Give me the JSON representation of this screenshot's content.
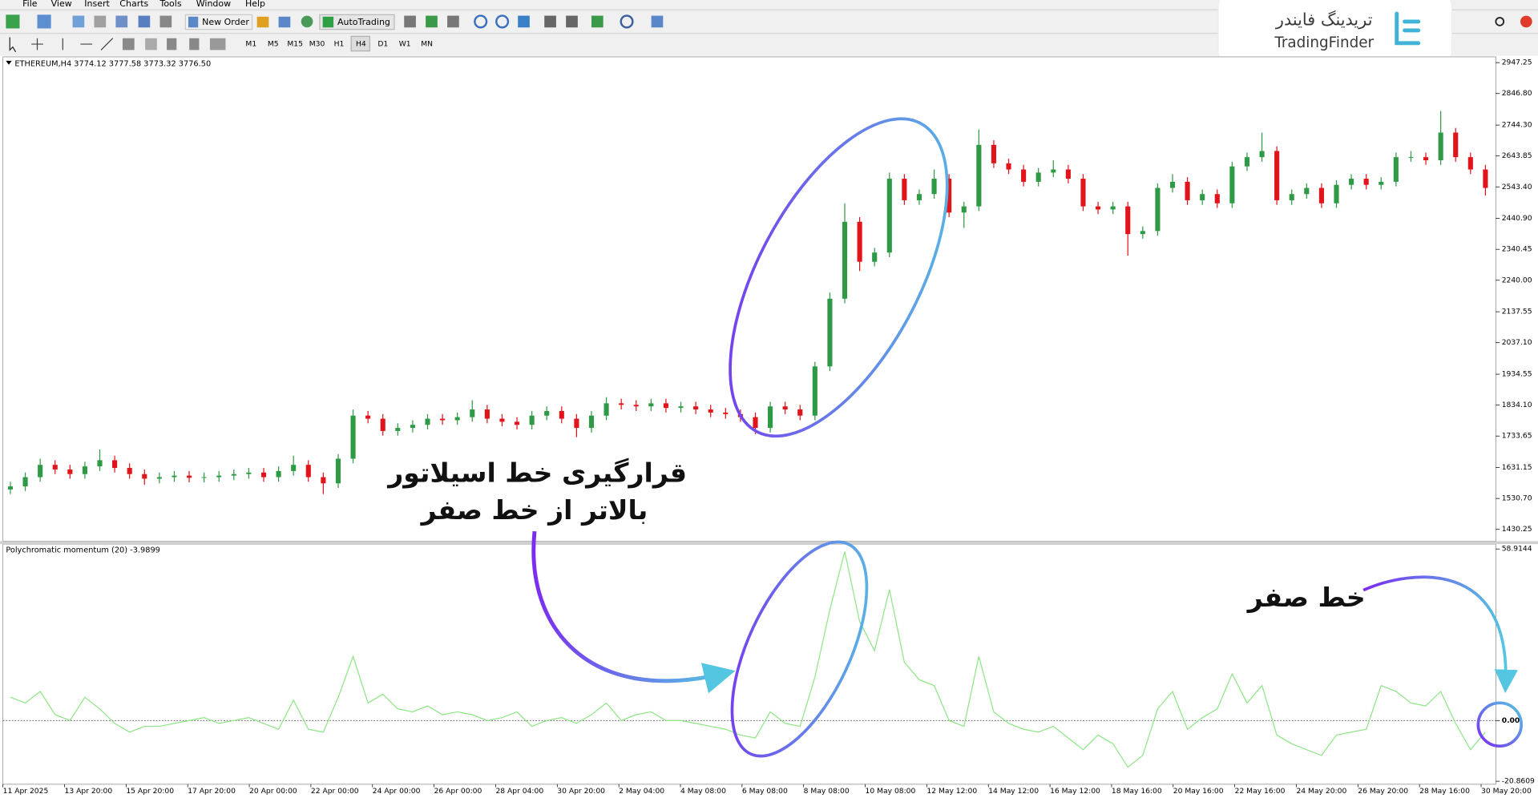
{
  "menu": [
    "File",
    "View",
    "Insert",
    "Charts",
    "Tools",
    "Window",
    "Help"
  ],
  "toolbar": {
    "new_order": "New Order",
    "autotrading": "AutoTrading"
  },
  "timeframes": [
    "M1",
    "M5",
    "M15",
    "M30",
    "H1",
    "H4",
    "D1",
    "W1",
    "MN"
  ],
  "logo": {
    "fa": "تریدینگ فایندر",
    "en": "TradingFinder"
  },
  "annotations": {
    "oscillator_line_1": "قرارگیری خط اسیلاتور",
    "oscillator_line_2": "بالاتر از خط صفر",
    "zero_line": "خط صفر"
  },
  "chart_data": [
    {
      "type": "candlestick",
      "title": "ETHEREUM,H4  3774.12 3777.58 3773.32 3776.50",
      "ylim": [
        1392,
        2966
      ],
      "yticks": [
        2947.25,
        {
          "value": 2846.8,
          "label": "2846.80"
        },
        {
          "value": 2744.3,
          "label": "2744.30"
        },
        2643.85,
        {
          "value": 2543.4,
          "label": "2543.40"
        },
        {
          "value": 2440.9,
          "label": "2440.90"
        },
        2340.45,
        {
          "value": 2240,
          "label": "2240.00"
        },
        2137.55,
        {
          "value": 2037.1,
          "label": "2037.10"
        },
        1934.55,
        {
          "value": 1834.1,
          "label": "1834.10"
        },
        1733.65,
        1631.15,
        {
          "value": 1530.7,
          "label": "1530.70"
        },
        1430.25
      ],
      "up_color": "#2f9a45",
      "down_color": "#e0141a",
      "open": [
        1560,
        1570,
        1600,
        1640,
        1625,
        1610,
        1635,
        1655,
        1630,
        1610,
        1595,
        1600,
        1605,
        1598,
        1600,
        1605,
        1610,
        1615,
        1600,
        1620,
        1640,
        1600,
        1580,
        1660,
        1800,
        1790,
        1750,
        1760,
        1770,
        1790,
        1785,
        1795,
        1820,
        1790,
        1780,
        1770,
        1800,
        1815,
        1790,
        1760,
        1800,
        1840,
        1835,
        1830,
        1840,
        1825,
        1830,
        1820,
        1810,
        1805,
        1795,
        1760,
        1830,
        1820,
        1800,
        1960,
        2180,
        2430,
        2300,
        2330,
        2570,
        2500,
        2520,
        2570,
        2460,
        2480,
        2680,
        2620,
        2600,
        2560,
        2590,
        2600,
        2570,
        2480,
        2470,
        2480,
        2390,
        2400,
        2540,
        2560,
        2500,
        2520,
        2490,
        2610,
        2640,
        2660,
        2500,
        2520,
        2540,
        2490,
        2550,
        2570,
        2550,
        2560,
        2640,
        2640,
        2630,
        2720,
        2640,
        2600
      ],
      "high": [
        1585,
        1615,
        1660,
        1655,
        1640,
        1650,
        1690,
        1670,
        1645,
        1625,
        1615,
        1620,
        1620,
        1615,
        1620,
        1625,
        1630,
        1630,
        1635,
        1670,
        1655,
        1615,
        1675,
        1820,
        1815,
        1805,
        1775,
        1785,
        1805,
        1805,
        1810,
        1850,
        1835,
        1805,
        1795,
        1815,
        1830,
        1830,
        1805,
        1815,
        1860,
        1855,
        1850,
        1855,
        1855,
        1845,
        1845,
        1835,
        1825,
        1820,
        1810,
        1845,
        1845,
        1835,
        1975,
        2200,
        2490,
        2445,
        2345,
        2590,
        2585,
        2535,
        2600,
        2585,
        2495,
        2730,
        2695,
        2635,
        2615,
        2605,
        2630,
        2615,
        2585,
        2495,
        2495,
        2495,
        2415,
        2555,
        2585,
        2575,
        2535,
        2535,
        2625,
        2655,
        2720,
        2675,
        2535,
        2555,
        2555,
        2565,
        2585,
        2585,
        2575,
        2655,
        2660,
        2655,
        2790,
        2735,
        2655,
        2615
      ],
      "low": [
        1545,
        1555,
        1585,
        1610,
        1595,
        1595,
        1620,
        1615,
        1595,
        1575,
        1580,
        1585,
        1583,
        1583,
        1585,
        1590,
        1595,
        1585,
        1585,
        1605,
        1585,
        1545,
        1565,
        1645,
        1775,
        1735,
        1735,
        1745,
        1755,
        1770,
        1770,
        1780,
        1775,
        1765,
        1755,
        1755,
        1785,
        1775,
        1730,
        1745,
        1785,
        1820,
        1815,
        1815,
        1810,
        1810,
        1805,
        1795,
        1790,
        1780,
        1740,
        1745,
        1805,
        1785,
        1785,
        1945,
        2165,
        2270,
        2285,
        2315,
        2485,
        2485,
        2505,
        2445,
        2410,
        2465,
        2605,
        2585,
        2545,
        2545,
        2575,
        2555,
        2465,
        2455,
        2455,
        2320,
        2375,
        2385,
        2525,
        2485,
        2485,
        2475,
        2475,
        2595,
        2625,
        2485,
        2485,
        2505,
        2475,
        2475,
        2535,
        2535,
        2535,
        2545,
        2625,
        2615,
        2615,
        2625,
        2585,
        2515
      ],
      "close": [
        1570,
        1600,
        1640,
        1625,
        1610,
        1635,
        1655,
        1630,
        1610,
        1595,
        1600,
        1605,
        1598,
        1600,
        1605,
        1610,
        1615,
        1600,
        1620,
        1640,
        1600,
        1580,
        1660,
        1800,
        1790,
        1750,
        1760,
        1770,
        1790,
        1785,
        1795,
        1820,
        1790,
        1780,
        1770,
        1800,
        1815,
        1790,
        1760,
        1800,
        1840,
        1835,
        1830,
        1840,
        1825,
        1830,
        1820,
        1810,
        1805,
        1795,
        1760,
        1830,
        1820,
        1800,
        1960,
        2180,
        2430,
        2300,
        2330,
        2570,
        2500,
        2520,
        2570,
        2460,
        2480,
        2680,
        2620,
        2600,
        2560,
        2590,
        2600,
        2570,
        2480,
        2470,
        2480,
        2390,
        2400,
        2540,
        2560,
        2500,
        2520,
        2490,
        2610,
        2640,
        2660,
        2500,
        2520,
        2540,
        2490,
        2550,
        2570,
        2550,
        2560,
        2640,
        2640,
        2630,
        2720,
        2640,
        2600,
        2540
      ]
    },
    {
      "type": "line",
      "title": "Polychromatic momentum (20) -3.9899",
      "ylim": [
        -21.9,
        60.6
      ],
      "yticks": [
        58.9144,
        {
          "value": 0,
          "label": "0.00"
        },
        -20.8609
      ],
      "color": "#8ee585",
      "values": [
        8,
        6,
        10,
        2,
        0,
        8,
        4,
        -1,
        -4,
        -2,
        -2,
        -1,
        0,
        1,
        -1,
        0,
        1,
        -1,
        -3,
        7,
        -3,
        -4,
        8,
        22,
        6,
        9,
        4,
        3,
        5,
        2,
        3,
        2,
        0,
        1,
        3,
        -2,
        0,
        1,
        -1,
        2,
        6,
        0,
        2,
        3,
        0,
        0,
        -1,
        -2,
        -3,
        -5,
        -6,
        3,
        -1,
        -2,
        15,
        38,
        58,
        34,
        24,
        45,
        20,
        14,
        12,
        0,
        -2,
        22,
        3,
        -1,
        -3,
        -4,
        -2,
        -6,
        -10,
        -5,
        -8,
        -16,
        -12,
        4,
        10,
        -3,
        1,
        4,
        16,
        6,
        12,
        -5,
        -8,
        -10,
        -12,
        -5,
        -4,
        -3,
        12,
        10,
        6,
        5,
        10,
        -1,
        -10,
        -4
      ],
      "x_labels": [
        "11 Apr 2025",
        "13 Apr 20:00",
        "15 Apr 20:00",
        "17 Apr 20:00",
        "20 Apr 00:00",
        "22 Apr 00:00",
        "24 Apr 00:00",
        "26 Apr 00:00",
        "28 Apr 04:00",
        "30 Apr 20:00",
        "2 May 04:00",
        "4 May 08:00",
        "6 May 08:00",
        "8 May 08:00",
        "10 May 08:00",
        "12 May 12:00",
        "14 May 12:00",
        "16 May 12:00",
        "18 May 16:00",
        "20 May 16:00",
        "22 May 16:00",
        "24 May 20:00",
        "26 May 20:00",
        "28 May 16:00",
        "30 May 20:00"
      ]
    }
  ]
}
